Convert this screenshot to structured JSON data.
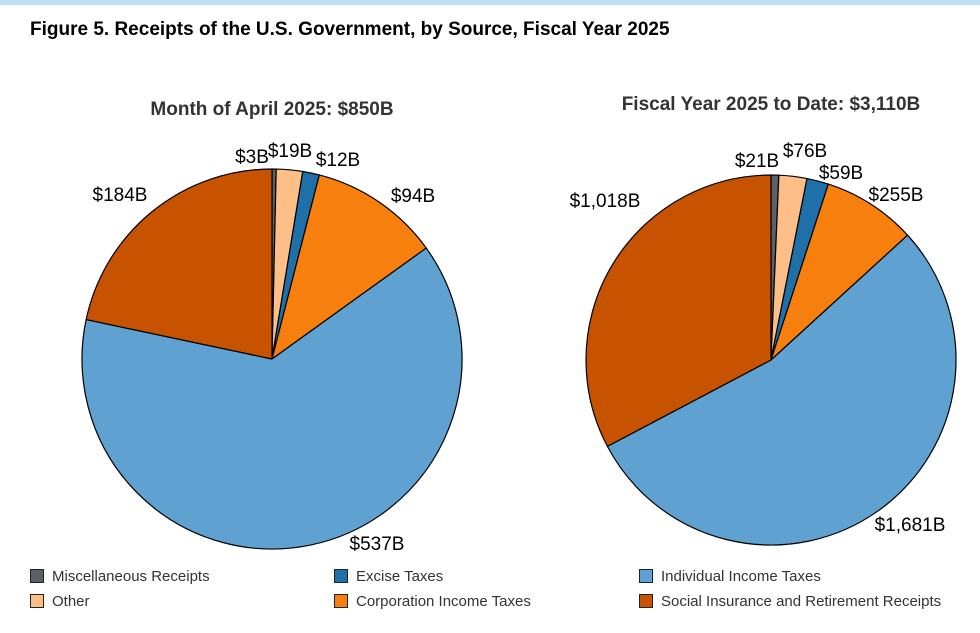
{
  "figure_title": "Figure 5. Receipts of the U.S. Government, by Source, Fiscal Year 2025",
  "colors": {
    "misc": "#5a6169",
    "other": "#fdbf87",
    "excise": "#1f6fa8",
    "corporation": "#f77f0e",
    "individual": "#5fa1d0",
    "social": "#c75200"
  },
  "legend": [
    {
      "key": "misc",
      "label": "Miscellaneous Receipts"
    },
    {
      "key": "excise",
      "label": "Excise Taxes"
    },
    {
      "key": "individual",
      "label": "Individual Income Taxes"
    },
    {
      "key": "other",
      "label": "Other"
    },
    {
      "key": "corporation",
      "label": "Corporation Income Taxes"
    },
    {
      "key": "social",
      "label": "Social Insurance and Retirement Receipts"
    }
  ],
  "chart_data": [
    {
      "type": "pie",
      "title": "Month of April 2025: $850B",
      "slices": [
        {
          "key": "misc",
          "name": "Miscellaneous Receipts",
          "value": 3,
          "label": "$3B"
        },
        {
          "key": "other",
          "name": "Other",
          "value": 19,
          "label": "$19B"
        },
        {
          "key": "excise",
          "name": "Excise Taxes",
          "value": 12,
          "label": "$12B"
        },
        {
          "key": "corporation",
          "name": "Corporation Income Taxes",
          "value": 94,
          "label": "$94B"
        },
        {
          "key": "individual",
          "name": "Individual Income Taxes",
          "value": 537,
          "label": "$537B"
        },
        {
          "key": "social",
          "name": "Social Insurance and Retirement Receipts",
          "value": 184,
          "label": "$184B"
        }
      ]
    },
    {
      "type": "pie",
      "title": "Fiscal Year 2025 to Date: $3,110B",
      "slices": [
        {
          "key": "misc",
          "name": "Miscellaneous Receipts",
          "value": 21,
          "label": "$21B"
        },
        {
          "key": "other",
          "name": "Other",
          "value": 76,
          "label": "$76B"
        },
        {
          "key": "excise",
          "name": "Excise Taxes",
          "value": 59,
          "label": "$59B"
        },
        {
          "key": "corporation",
          "name": "Corporation Income Taxes",
          "value": 255,
          "label": "$255B"
        },
        {
          "key": "individual",
          "name": "Individual Income Taxes",
          "value": 1681,
          "label": "$1,681B"
        },
        {
          "key": "social",
          "name": "Social Insurance and Retirement Receipts",
          "value": 1018,
          "label": "$1,018B"
        }
      ]
    }
  ]
}
